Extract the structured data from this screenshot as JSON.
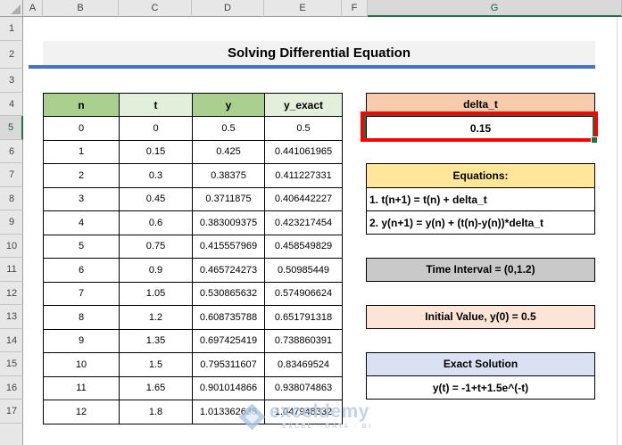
{
  "sheet": {
    "column_headers": [
      "A",
      "B",
      "C",
      "D",
      "E",
      "F",
      "G"
    ],
    "row_headers": [
      "1",
      "2",
      "3",
      "4",
      "5",
      "6",
      "7",
      "8",
      "9",
      "10",
      "11",
      "12",
      "13",
      "14",
      "15",
      "16",
      "17"
    ],
    "selected_column": "G",
    "selected_row": "5"
  },
  "title": {
    "text": "Solving Differential Equation"
  },
  "table": {
    "headers": [
      "n",
      "t",
      "y",
      "y_exact"
    ],
    "rows": [
      [
        "0",
        "0",
        "0.5",
        "0.5"
      ],
      [
        "1",
        "0.15",
        "0.425",
        "0.441061965"
      ],
      [
        "2",
        "0.3",
        "0.38375",
        "0.411227331"
      ],
      [
        "3",
        "0.45",
        "0.3711875",
        "0.406442227"
      ],
      [
        "4",
        "0.6",
        "0.383009375",
        "0.423217454"
      ],
      [
        "5",
        "0.75",
        "0.415557969",
        "0.458549829"
      ],
      [
        "6",
        "0.9",
        "0.465724273",
        "0.50985449"
      ],
      [
        "7",
        "1.05",
        "0.530865632",
        "0.574906624"
      ],
      [
        "8",
        "1.2",
        "0.608735788",
        "0.651791318"
      ],
      [
        "9",
        "1.35",
        "0.697425419",
        "0.738860391"
      ],
      [
        "10",
        "1.5",
        "0.795311607",
        "0.83469524"
      ],
      [
        "11",
        "1.65",
        "0.901014866",
        "0.938074863"
      ],
      [
        "12",
        "1.8",
        "1.013362636",
        "1.047948332"
      ]
    ]
  },
  "panels": {
    "delta_t_label": "delta_t",
    "delta_t_value": "0.15",
    "equations_header": "Equations:",
    "equation_1": "1. t(n+1) = t(n) + delta_t",
    "equation_2": "2. y(n+1) = y(n) + (t(n)-y(n))*delta_t",
    "time_interval": "Time Interval = (0,1.2)",
    "initial_value": "Initial Value, y(0) = 0.5",
    "exact_solution_header": "Exact Solution",
    "exact_solution_formula": "y(t) = -1+t+1.5e^(-t)"
  },
  "watermark": {
    "brand": "exceldemy",
    "tagline": "EXCEL · DATA · BI"
  },
  "colors": {
    "table_header_green_dark": "#A9D08E",
    "table_header_green_light": "#E2EFDA",
    "delta_t_fill": "#F8CBAD",
    "equations_fill": "#FFE699",
    "time_interval_fill": "#C9C9C9",
    "initial_value_fill": "#FCE4D6",
    "exact_solution_fill": "#D9E1F2",
    "title_underline": "#4472C4",
    "highlight_border": "#FF0000",
    "selection_accent": "#217346"
  }
}
